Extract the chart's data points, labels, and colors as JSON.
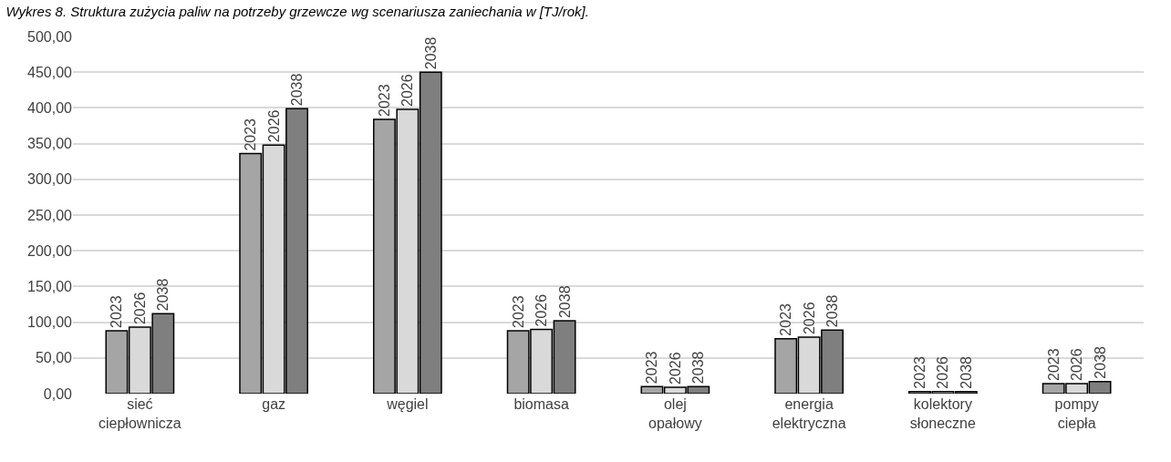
{
  "chart_data": {
    "type": "bar",
    "title": "Wykres 8. Struktura zużycia paliw na potrzeby grzewcze wg scenariusza zaniechania w [TJ/rok].",
    "categories": [
      "sieć ciepłownicza",
      "gaz",
      "węgiel",
      "biomasa",
      "olej opałowy",
      "energia elektryczna",
      "kolektory słoneczne",
      "pompy ciepła"
    ],
    "series": [
      {
        "name": "2023",
        "color": "#a5a5a5",
        "values": [
          88,
          336,
          384,
          88,
          10,
          77,
          3,
          14
        ]
      },
      {
        "name": "2026",
        "color": "#d9d9d9",
        "values": [
          93,
          348,
          398,
          90,
          9,
          79,
          3,
          14
        ]
      },
      {
        "name": "2038",
        "color": "#7f7f7f",
        "values": [
          112,
          399,
          450,
          102,
          10,
          89,
          3,
          17
        ]
      }
    ],
    "ylim": [
      0,
      500
    ],
    "yticks": [
      {
        "value": 0,
        "label": "0,00"
      },
      {
        "value": 50,
        "label": "50,00"
      },
      {
        "value": 100,
        "label": "100,00"
      },
      {
        "value": 150,
        "label": "150,00"
      },
      {
        "value": 200,
        "label": "200,00"
      },
      {
        "value": 250,
        "label": "250,00"
      },
      {
        "value": 300,
        "label": "300,00"
      },
      {
        "value": 350,
        "label": "350,00"
      },
      {
        "value": 400,
        "label": "400,00"
      },
      {
        "value": 450,
        "label": "450,00"
      },
      {
        "value": 500,
        "label": "500,00"
      }
    ],
    "grid": "y",
    "legend": false
  }
}
